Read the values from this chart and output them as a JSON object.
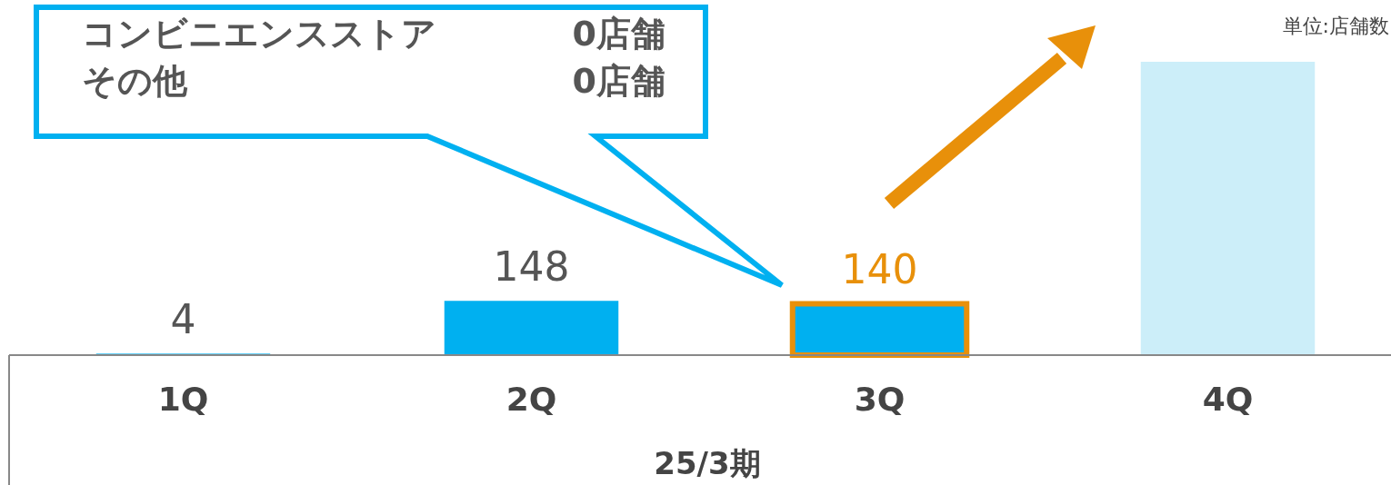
{
  "chart_data": {
    "type": "bar",
    "categories": [
      "1Q",
      "2Q",
      "3Q",
      "4Q"
    ],
    "values": [
      4,
      148,
      140,
      800
    ],
    "colors": [
      "#00b0f0",
      "#00b0f0",
      "#00b0f0",
      "#cceef9"
    ],
    "value_labels": [
      "4",
      "148",
      "140",
      null
    ],
    "xlabel": "25/3期",
    "annotations": [
      "コンビニエンスストア",
      "0店舗",
      "その他",
      "0店舗",
      "単位:店舗数"
    ]
  }
}
